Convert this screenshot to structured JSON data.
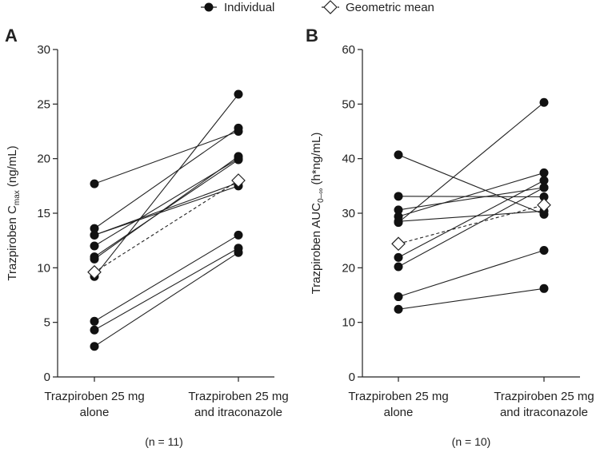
{
  "legend": {
    "individual": "Individual",
    "geometric_mean": "Geometric mean"
  },
  "chart_data": [
    {
      "type": "line",
      "panel": "A",
      "title": "",
      "xlabel": "",
      "ylabel_prefix": "Trazpiroben C",
      "ylabel_sub": "max",
      "ylabel_suffix": " (ng/mL)",
      "ylim": [
        0,
        30
      ],
      "yticks": [
        0,
        5,
        10,
        15,
        20,
        25,
        30
      ],
      "categories": [
        [
          "Trazpiroben 25 mg",
          "alone"
        ],
        [
          "Trazpiroben 25 mg",
          "and itraconazole"
        ]
      ],
      "n_label": "(n = 11)",
      "individuals": [
        [
          17.7,
          22.5
        ],
        [
          13.6,
          22.8
        ],
        [
          13.0,
          17.8
        ],
        [
          12.0,
          20.0
        ],
        [
          11.0,
          19.9
        ],
        [
          10.8,
          20.2
        ],
        [
          9.2,
          25.9
        ],
        [
          5.1,
          13.0
        ],
        [
          4.3,
          11.8
        ],
        [
          2.8,
          11.4
        ],
        [
          13.0,
          17.5
        ]
      ],
      "geometric_mean": [
        9.6,
        18.0
      ]
    },
    {
      "type": "line",
      "panel": "B",
      "title": "",
      "xlabel": "",
      "ylabel_prefix": "Trazpiroben AUC",
      "ylabel_sub": "0–∞",
      "ylabel_suffix": " (h*ng/mL)",
      "ylim": [
        0,
        60
      ],
      "yticks": [
        0,
        10,
        20,
        30,
        40,
        50,
        60
      ],
      "categories": [
        [
          "Trazpiroben 25 mg",
          "alone"
        ],
        [
          "Trazpiroben 25 mg",
          "and itraconazole"
        ]
      ],
      "n_label": "(n = 10)",
      "individuals": [
        [
          40.7,
          29.8
        ],
        [
          33.1,
          33.0
        ],
        [
          30.6,
          34.7
        ],
        [
          29.4,
          37.4
        ],
        [
          28.3,
          50.3
        ],
        [
          21.9,
          36.0
        ],
        [
          20.2,
          34.7
        ],
        [
          14.7,
          23.2
        ],
        [
          12.4,
          16.2
        ],
        [
          28.5,
          30.4
        ]
      ],
      "geometric_mean": [
        24.4,
        31.5
      ]
    }
  ]
}
